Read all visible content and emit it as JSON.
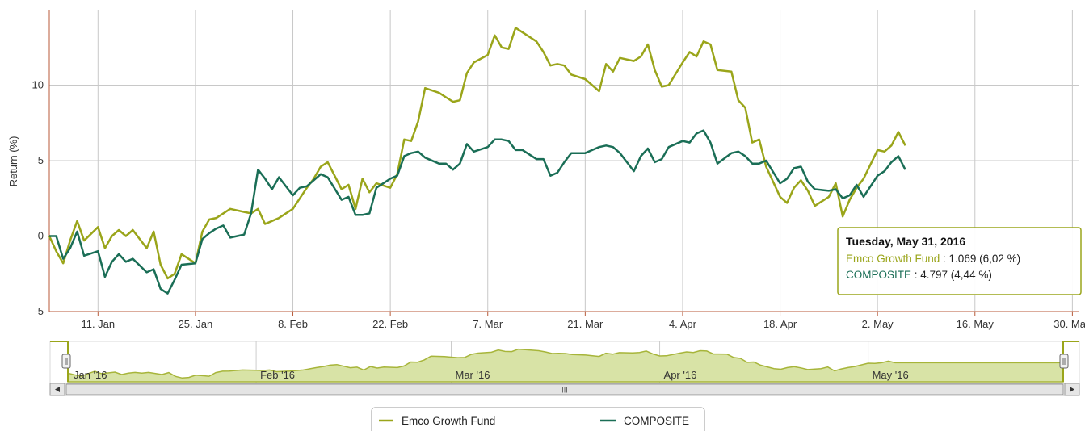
{
  "chart_data": {
    "type": "line",
    "ylabel": "Return (%)",
    "ylim": [
      -5,
      15
    ],
    "yticks": [
      -5,
      0,
      5,
      10
    ],
    "grid": true,
    "legend_position": "bottom-center",
    "xlim": [
      "2016-01-04",
      "2016-05-31"
    ],
    "xticks": [
      {
        "label": "11. Jan",
        "date": "2016-01-11"
      },
      {
        "label": "25. Jan",
        "date": "2016-01-25"
      },
      {
        "label": "8. Feb",
        "date": "2016-02-08"
      },
      {
        "label": "22. Feb",
        "date": "2016-02-22"
      },
      {
        "label": "7. Mar",
        "date": "2016-03-07"
      },
      {
        "label": "21. Mar",
        "date": "2016-03-21"
      },
      {
        "label": "4. Apr",
        "date": "2016-04-04"
      },
      {
        "label": "18. Apr",
        "date": "2016-04-18"
      },
      {
        "label": "2. May",
        "date": "2016-05-02"
      },
      {
        "label": "16. May",
        "date": "2016-05-16"
      },
      {
        "label": "30. May",
        "date": "2016-05-30"
      }
    ],
    "series": [
      {
        "name": "Emco Growth Fund",
        "color": "#9aa51a",
        "points": [
          [
            "2016-01-04",
            0.0
          ],
          [
            "2016-01-05",
            -1.0
          ],
          [
            "2016-01-06",
            -1.8
          ],
          [
            "2016-01-07",
            -0.3
          ],
          [
            "2016-01-08",
            1.0
          ],
          [
            "2016-01-09",
            -0.3
          ],
          [
            "2016-01-11",
            0.6
          ],
          [
            "2016-01-12",
            -0.8
          ],
          [
            "2016-01-13",
            0.0
          ],
          [
            "2016-01-14",
            0.4
          ],
          [
            "2016-01-15",
            0.0
          ],
          [
            "2016-01-16",
            0.4
          ],
          [
            "2016-01-18",
            -0.8
          ],
          [
            "2016-01-19",
            0.3
          ],
          [
            "2016-01-20",
            -1.9
          ],
          [
            "2016-01-21",
            -2.8
          ],
          [
            "2016-01-22",
            -2.5
          ],
          [
            "2016-01-23",
            -1.2
          ],
          [
            "2016-01-25",
            -1.8
          ],
          [
            "2016-01-26",
            0.3
          ],
          [
            "2016-01-27",
            1.1
          ],
          [
            "2016-01-28",
            1.2
          ],
          [
            "2016-01-29",
            1.5
          ],
          [
            "2016-01-30",
            1.8
          ],
          [
            "2016-02-01",
            1.6
          ],
          [
            "2016-02-02",
            1.5
          ],
          [
            "2016-02-03",
            1.8
          ],
          [
            "2016-02-04",
            0.8
          ],
          [
            "2016-02-05",
            1.0
          ],
          [
            "2016-02-06",
            1.2
          ],
          [
            "2016-02-08",
            1.8
          ],
          [
            "2016-02-09",
            2.5
          ],
          [
            "2016-02-10",
            3.2
          ],
          [
            "2016-02-11",
            3.8
          ],
          [
            "2016-02-12",
            4.6
          ],
          [
            "2016-02-13",
            4.9
          ],
          [
            "2016-02-15",
            3.1
          ],
          [
            "2016-02-16",
            3.4
          ],
          [
            "2016-02-17",
            1.8
          ],
          [
            "2016-02-18",
            3.8
          ],
          [
            "2016-02-19",
            2.9
          ],
          [
            "2016-02-20",
            3.5
          ],
          [
            "2016-02-22",
            3.2
          ],
          [
            "2016-02-23",
            4.1
          ],
          [
            "2016-02-24",
            6.4
          ],
          [
            "2016-02-25",
            6.3
          ],
          [
            "2016-02-26",
            7.6
          ],
          [
            "2016-02-27",
            9.8
          ],
          [
            "2016-02-29",
            9.5
          ],
          [
            "2016-03-01",
            9.2
          ],
          [
            "2016-03-02",
            8.9
          ],
          [
            "2016-03-03",
            9.0
          ],
          [
            "2016-03-04",
            10.8
          ],
          [
            "2016-03-05",
            11.5
          ],
          [
            "2016-03-07",
            12.0
          ],
          [
            "2016-03-08",
            13.3
          ],
          [
            "2016-03-09",
            12.5
          ],
          [
            "2016-03-10",
            12.4
          ],
          [
            "2016-03-11",
            13.8
          ],
          [
            "2016-03-12",
            13.5
          ],
          [
            "2016-03-14",
            12.9
          ],
          [
            "2016-03-15",
            12.2
          ],
          [
            "2016-03-16",
            11.3
          ],
          [
            "2016-03-17",
            11.4
          ],
          [
            "2016-03-18",
            11.3
          ],
          [
            "2016-03-19",
            10.7
          ],
          [
            "2016-03-21",
            10.4
          ],
          [
            "2016-03-22",
            10.0
          ],
          [
            "2016-03-23",
            9.6
          ],
          [
            "2016-03-24",
            11.4
          ],
          [
            "2016-03-25",
            10.9
          ],
          [
            "2016-03-26",
            11.8
          ],
          [
            "2016-03-28",
            11.6
          ],
          [
            "2016-03-29",
            11.9
          ],
          [
            "2016-03-30",
            12.7
          ],
          [
            "2016-03-31",
            11.0
          ],
          [
            "2016-04-01",
            9.9
          ],
          [
            "2016-04-02",
            10.0
          ],
          [
            "2016-04-04",
            11.5
          ],
          [
            "2016-04-05",
            12.2
          ],
          [
            "2016-04-06",
            11.9
          ],
          [
            "2016-04-07",
            12.9
          ],
          [
            "2016-04-08",
            12.7
          ],
          [
            "2016-04-09",
            11.0
          ],
          [
            "2016-04-11",
            10.9
          ],
          [
            "2016-04-12",
            9.0
          ],
          [
            "2016-04-13",
            8.5
          ],
          [
            "2016-04-14",
            6.2
          ],
          [
            "2016-04-15",
            6.4
          ],
          [
            "2016-04-16",
            4.6
          ],
          [
            "2016-04-18",
            2.6
          ],
          [
            "2016-04-19",
            2.2
          ],
          [
            "2016-04-20",
            3.2
          ],
          [
            "2016-04-21",
            3.7
          ],
          [
            "2016-04-22",
            3.0
          ],
          [
            "2016-04-23",
            2.0
          ],
          [
            "2016-04-25",
            2.6
          ],
          [
            "2016-04-26",
            3.5
          ],
          [
            "2016-04-27",
            1.3
          ],
          [
            "2016-04-28",
            2.4
          ],
          [
            "2016-04-29",
            3.2
          ],
          [
            "2016-04-30",
            3.8
          ],
          [
            "2016-05-02",
            5.7
          ],
          [
            "2016-05-03",
            5.6
          ],
          [
            "2016-05-04",
            6.0
          ],
          [
            "2016-05-05",
            6.9
          ],
          [
            "2016-05-06",
            6.0
          ]
        ]
      },
      {
        "name": "COMPOSITE",
        "color": "#1a6e56",
        "points": [
          [
            "2016-01-04",
            0.0
          ],
          [
            "2016-01-05",
            0.0
          ],
          [
            "2016-01-06",
            -1.5
          ],
          [
            "2016-01-07",
            -0.8
          ],
          [
            "2016-01-08",
            0.3
          ],
          [
            "2016-01-09",
            -1.3
          ],
          [
            "2016-01-11",
            -1.0
          ],
          [
            "2016-01-12",
            -2.7
          ],
          [
            "2016-01-13",
            -1.7
          ],
          [
            "2016-01-14",
            -1.2
          ],
          [
            "2016-01-15",
            -1.7
          ],
          [
            "2016-01-16",
            -1.5
          ],
          [
            "2016-01-18",
            -2.4
          ],
          [
            "2016-01-19",
            -2.2
          ],
          [
            "2016-01-20",
            -3.5
          ],
          [
            "2016-01-21",
            -3.8
          ],
          [
            "2016-01-22",
            -2.9
          ],
          [
            "2016-01-23",
            -1.9
          ],
          [
            "2016-01-25",
            -1.8
          ],
          [
            "2016-01-26",
            -0.2
          ],
          [
            "2016-01-27",
            0.2
          ],
          [
            "2016-01-28",
            0.5
          ],
          [
            "2016-01-29",
            0.7
          ],
          [
            "2016-01-30",
            -0.1
          ],
          [
            "2016-02-01",
            0.1
          ],
          [
            "2016-02-02",
            1.5
          ],
          [
            "2016-02-03",
            4.4
          ],
          [
            "2016-02-04",
            3.8
          ],
          [
            "2016-02-05",
            3.1
          ],
          [
            "2016-02-06",
            3.9
          ],
          [
            "2016-02-08",
            2.7
          ],
          [
            "2016-02-09",
            3.2
          ],
          [
            "2016-02-10",
            3.3
          ],
          [
            "2016-02-11",
            3.7
          ],
          [
            "2016-02-12",
            4.1
          ],
          [
            "2016-02-13",
            3.9
          ],
          [
            "2016-02-15",
            2.4
          ],
          [
            "2016-02-16",
            2.6
          ],
          [
            "2016-02-17",
            1.4
          ],
          [
            "2016-02-18",
            1.4
          ],
          [
            "2016-02-19",
            1.5
          ],
          [
            "2016-02-20",
            3.2
          ],
          [
            "2016-02-22",
            3.8
          ],
          [
            "2016-02-23",
            4.0
          ],
          [
            "2016-02-24",
            5.3
          ],
          [
            "2016-02-25",
            5.5
          ],
          [
            "2016-02-26",
            5.6
          ],
          [
            "2016-02-27",
            5.2
          ],
          [
            "2016-02-29",
            4.8
          ],
          [
            "2016-03-01",
            4.8
          ],
          [
            "2016-03-02",
            4.4
          ],
          [
            "2016-03-03",
            4.8
          ],
          [
            "2016-03-04",
            6.1
          ],
          [
            "2016-03-05",
            5.6
          ],
          [
            "2016-03-07",
            5.9
          ],
          [
            "2016-03-08",
            6.4
          ],
          [
            "2016-03-09",
            6.4
          ],
          [
            "2016-03-10",
            6.3
          ],
          [
            "2016-03-11",
            5.7
          ],
          [
            "2016-03-12",
            5.7
          ],
          [
            "2016-03-14",
            5.1
          ],
          [
            "2016-03-15",
            5.1
          ],
          [
            "2016-03-16",
            4.0
          ],
          [
            "2016-03-17",
            4.2
          ],
          [
            "2016-03-18",
            4.9
          ],
          [
            "2016-03-19",
            5.5
          ],
          [
            "2016-03-21",
            5.5
          ],
          [
            "2016-03-22",
            5.7
          ],
          [
            "2016-03-23",
            5.9
          ],
          [
            "2016-03-24",
            6.0
          ],
          [
            "2016-03-25",
            5.9
          ],
          [
            "2016-03-26",
            5.5
          ],
          [
            "2016-03-28",
            4.3
          ],
          [
            "2016-03-29",
            5.3
          ],
          [
            "2016-03-30",
            5.8
          ],
          [
            "2016-03-31",
            4.9
          ],
          [
            "2016-04-01",
            5.1
          ],
          [
            "2016-04-02",
            5.9
          ],
          [
            "2016-04-04",
            6.3
          ],
          [
            "2016-04-05",
            6.2
          ],
          [
            "2016-04-06",
            6.8
          ],
          [
            "2016-04-07",
            7.0
          ],
          [
            "2016-04-08",
            6.2
          ],
          [
            "2016-04-09",
            4.8
          ],
          [
            "2016-04-11",
            5.5
          ],
          [
            "2016-04-12",
            5.6
          ],
          [
            "2016-04-13",
            5.3
          ],
          [
            "2016-04-14",
            4.8
          ],
          [
            "2016-04-15",
            4.8
          ],
          [
            "2016-04-16",
            5.0
          ],
          [
            "2016-04-18",
            3.5
          ],
          [
            "2016-04-19",
            3.8
          ],
          [
            "2016-04-20",
            4.5
          ],
          [
            "2016-04-21",
            4.6
          ],
          [
            "2016-04-22",
            3.6
          ],
          [
            "2016-04-23",
            3.1
          ],
          [
            "2016-04-25",
            3.0
          ],
          [
            "2016-04-26",
            3.1
          ],
          [
            "2016-04-27",
            2.5
          ],
          [
            "2016-04-28",
            2.7
          ],
          [
            "2016-04-29",
            3.4
          ],
          [
            "2016-04-30",
            2.6
          ],
          [
            "2016-05-02",
            4.0
          ],
          [
            "2016-05-03",
            4.3
          ],
          [
            "2016-05-04",
            4.9
          ],
          [
            "2016-05-05",
            5.3
          ],
          [
            "2016-05-06",
            4.4
          ]
        ]
      }
    ],
    "tooltip": {
      "title": "Tuesday, May 31, 2016",
      "rows": [
        {
          "series": "Emco Growth Fund",
          "value": " : 1.069 (6,02 %)",
          "color": "#9aa51a"
        },
        {
          "series": "COMPOSITE",
          "value": " : 4.797 (4,44 %)",
          "color": "#1a6e56"
        }
      ]
    },
    "navigator": {
      "labels": [
        "Jan '16",
        "Feb '16",
        "Mar '16",
        "Apr '16",
        "May '16"
      ],
      "scrollbar_glyph": "III"
    }
  }
}
